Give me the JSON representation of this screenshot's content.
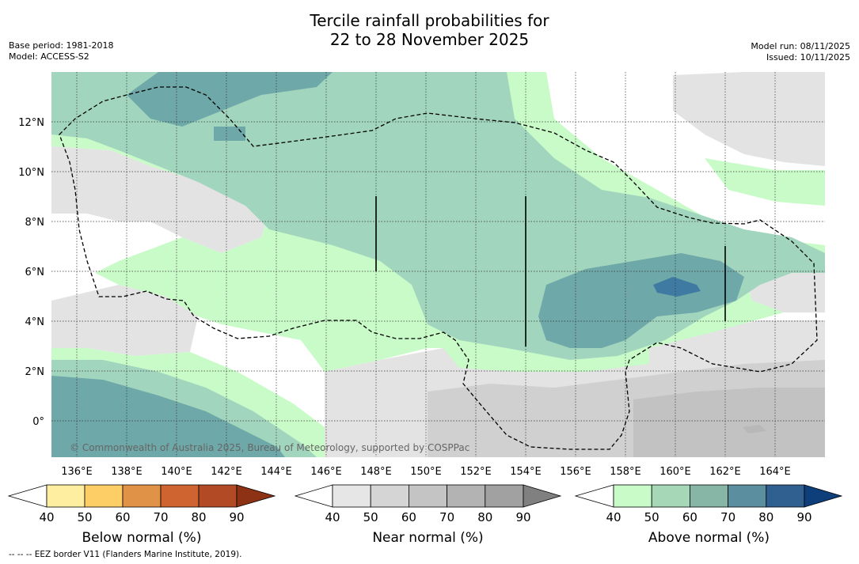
{
  "title_line1": "Tercile rainfall probabilities for",
  "title_line2": "22 to 28 November 2025",
  "meta_left": {
    "base_period": "Base period: 1981-2018",
    "model": "Model: ACCESS-S2"
  },
  "meta_right": {
    "model_run": "Model run: 08/11/2025",
    "issued": "Issued: 10/11/2025"
  },
  "copyright": "© Commonwealth of Australia 2025, Bureau of Meteorology, supported by COSPPac",
  "footnote": "--  --  -- EEZ border V11 (Flanders Marine Institute, 2019).",
  "axes": {
    "lon_ticks": [
      "136°E",
      "138°E",
      "140°E",
      "142°E",
      "144°E",
      "146°E",
      "148°E",
      "150°E",
      "152°E",
      "154°E",
      "156°E",
      "158°E",
      "160°E",
      "162°E",
      "164°E"
    ],
    "lat_ticks": [
      "12°N",
      "10°N",
      "8°N",
      "6°N",
      "4°N",
      "2°N",
      "0°"
    ]
  },
  "colorbars": [
    {
      "label": "Below normal (%)",
      "ticks": [
        "40",
        "50",
        "60",
        "70",
        "80",
        "90"
      ],
      "colors": [
        "#ffffff",
        "#feeea0",
        "#fdcd66",
        "#e09347",
        "#cf6430",
        "#b34a26",
        "#8e3215"
      ]
    },
    {
      "label": "Near normal (%)",
      "ticks": [
        "40",
        "50",
        "60",
        "70",
        "80",
        "90"
      ],
      "colors": [
        "#ffffff",
        "#e6e6e6",
        "#d5d5d5",
        "#c4c4c4",
        "#b3b3b3",
        "#a1a1a1",
        "#808080"
      ]
    },
    {
      "label": "Above normal (%)",
      "ticks": [
        "40",
        "50",
        "60",
        "70",
        "80",
        "90"
      ],
      "colors": [
        "#ffffff",
        "#c8fbc8",
        "#a6d8b8",
        "#87b5a6",
        "#5b8fa0",
        "#2f6090",
        "#0f3f7a"
      ]
    }
  ]
}
